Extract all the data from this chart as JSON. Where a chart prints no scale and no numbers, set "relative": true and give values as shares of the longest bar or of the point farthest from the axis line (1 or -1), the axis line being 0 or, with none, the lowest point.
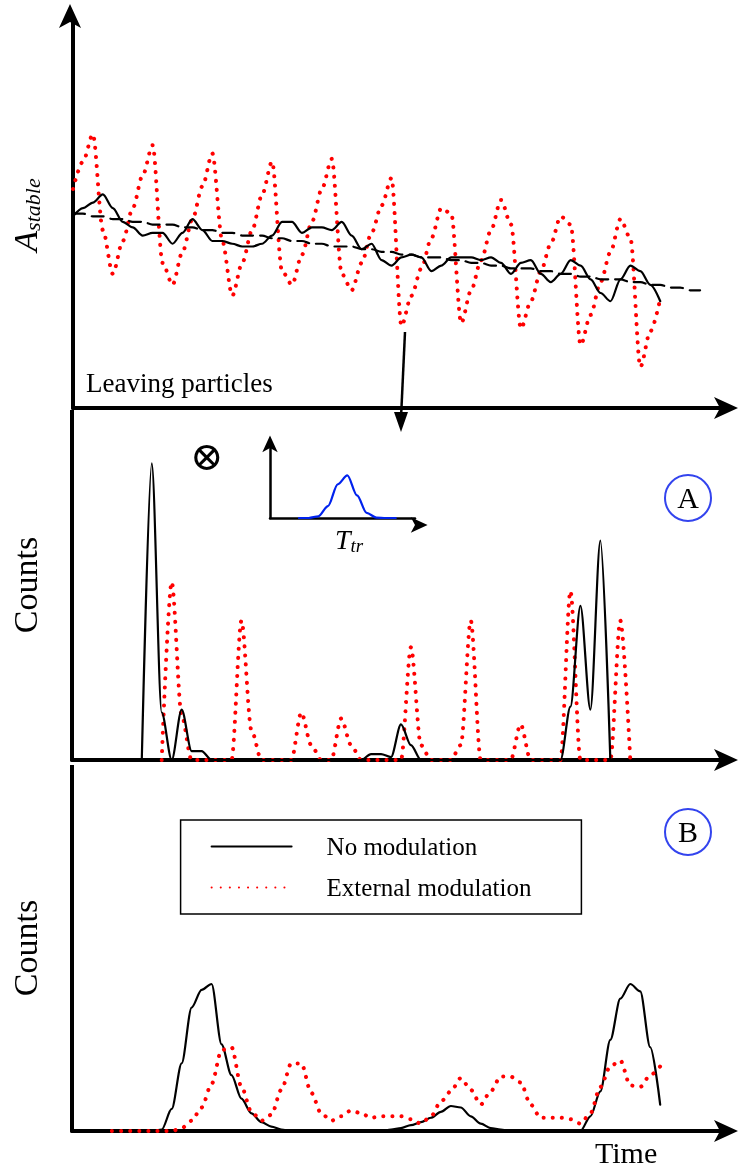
{
  "chart_data": [
    {
      "type": "line",
      "relative": true,
      "ylabel": "A$_{stable}$",
      "annotations": [
        "Leaving particles"
      ],
      "categories": [
        null,
        null,
        null,
        null,
        null,
        null,
        null,
        null,
        null,
        null,
        null,
        null,
        null,
        null,
        null,
        null,
        null,
        null,
        null,
        null,
        null,
        null,
        null,
        null,
        null,
        null,
        null,
        null,
        null,
        null,
        null,
        null,
        null,
        null,
        null,
        null,
        null,
        null,
        null,
        null,
        null,
        null,
        null,
        null,
        null,
        null,
        null,
        null,
        null,
        null,
        null,
        null,
        null,
        null,
        null,
        null,
        null,
        null,
        null,
        null,
        null,
        null,
        null,
        null,
        null,
        null
      ],
      "series": [
        {
          "color": "#ff0000",
          "line_style": "dotted",
          "values": [
            0.8,
            0.9,
            1.0,
            0.65,
            0.49,
            0.61,
            0.73,
            0.85,
            0.96,
            0.53,
            0.45,
            0.57,
            0.69,
            0.81,
            0.93,
            0.61,
            0.41,
            0.53,
            0.65,
            0.78,
            0.9,
            0.5,
            0.45,
            0.56,
            0.68,
            0.8,
            0.91,
            0.49,
            0.43,
            0.53,
            0.64,
            0.74,
            0.84,
            0.3,
            0.41,
            0.51,
            0.62,
            0.73,
            0.71,
            0.31,
            0.43,
            0.54,
            0.65,
            0.76,
            0.67,
            0.29,
            0.39,
            0.5,
            0.6,
            0.7,
            0.67,
            0.23,
            0.34,
            0.46,
            0.57,
            0.69,
            0.62,
            0.15,
            0.28,
            0.4,
            null,
            null,
            null,
            null,
            null,
            null
          ]
        },
        {
          "color": "#000000",
          "line_style": "solid",
          "values": [
            0.7,
            0.73,
            0.75,
            0.78,
            0.73,
            0.68,
            0.66,
            0.63,
            0.64,
            0.64,
            0.6,
            0.64,
            0.69,
            0.65,
            0.61,
            0.61,
            0.6,
            0.59,
            0.59,
            0.6,
            0.63,
            0.68,
            0.68,
            0.64,
            0.66,
            0.66,
            0.65,
            0.68,
            0.63,
            0.58,
            0.6,
            0.54,
            0.52,
            0.55,
            0.56,
            0.55,
            0.5,
            0.52,
            0.55,
            0.55,
            0.55,
            0.54,
            0.55,
            0.53,
            0.49,
            0.53,
            0.54,
            0.49,
            0.46,
            0.49,
            0.54,
            0.52,
            0.47,
            0.42,
            0.39,
            0.47,
            0.52,
            0.5,
            0.45,
            0.39,
            null,
            null,
            null,
            null,
            null,
            null
          ]
        },
        {
          "color": "#000000",
          "line_style": "dashed",
          "values": [
            0.71,
            0.71,
            0.7,
            0.7,
            0.69,
            0.69,
            0.68,
            0.68,
            0.67,
            0.67,
            0.67,
            0.66,
            0.66,
            0.65,
            0.65,
            0.64,
            0.64,
            0.63,
            0.63,
            0.63,
            0.62,
            0.62,
            0.61,
            0.61,
            0.6,
            0.6,
            0.59,
            0.59,
            0.59,
            0.58,
            0.58,
            0.57,
            0.57,
            0.56,
            0.56,
            0.55,
            0.55,
            0.55,
            0.54,
            0.54,
            0.53,
            0.53,
            0.52,
            0.52,
            0.51,
            0.51,
            0.51,
            0.5,
            0.5,
            0.49,
            0.49,
            0.48,
            0.48,
            0.47,
            0.47,
            0.47,
            0.46,
            0.46,
            0.45,
            0.45,
            0.44,
            0.44,
            0.43,
            0.43,
            null,
            null
          ]
        }
      ]
    },
    {
      "type": "line",
      "relative": true,
      "ylabel": "Counts",
      "annotations": [
        "⊗",
        "A"
      ],
      "categories": [
        null,
        null,
        null,
        null,
        null,
        null,
        null,
        null,
        null,
        null,
        null,
        null,
        null,
        null,
        null,
        null,
        null,
        null,
        null,
        null,
        null,
        null,
        null,
        null,
        null,
        null,
        null,
        null,
        null,
        null,
        null,
        null,
        null,
        null,
        null,
        null,
        null,
        null,
        null,
        null,
        null,
        null,
        null,
        null,
        null,
        null,
        null,
        null,
        null,
        null,
        null,
        null,
        null,
        null,
        null,
        null,
        null,
        null,
        null,
        null,
        null,
        null,
        null,
        null,
        null,
        null
      ],
      "series": [
        {
          "color": "#ff0000",
          "line_style": "dotted",
          "values": [
            null,
            null,
            null,
            null,
            null,
            null,
            null,
            null,
            null,
            0,
            0.6,
            0.15,
            0,
            0,
            0,
            0,
            0,
            0.47,
            0.1,
            0,
            0,
            0,
            0,
            0.16,
            0.05,
            0,
            0,
            0.14,
            0.05,
            0,
            0,
            0,
            0,
            0,
            0.38,
            0.05,
            0,
            0,
            0,
            0.05,
            0.47,
            0,
            0,
            0,
            0,
            0.12,
            0,
            0,
            0,
            0,
            0.57,
            0,
            0,
            0,
            0,
            0.47,
            0,
            null,
            null,
            null,
            null,
            null,
            null,
            null,
            null,
            null
          ]
        },
        {
          "color": "#000000",
          "line_style": "solid",
          "values": [
            null,
            null,
            null,
            null,
            null,
            null,
            null,
            0,
            1.0,
            0.16,
            0,
            0.17,
            0.03,
            0.03,
            0,
            0,
            0,
            0,
            0,
            0,
            0,
            0,
            0,
            0,
            0,
            0,
            0,
            0,
            0,
            0,
            0.02,
            0.02,
            0.01,
            0.12,
            0.05,
            0,
            0,
            0,
            0,
            0,
            0,
            0,
            0,
            0,
            0,
            0,
            0,
            0,
            0,
            0,
            0.18,
            0.52,
            0.17,
            0.74,
            0,
            null,
            null,
            null,
            null,
            null,
            null,
            null,
            null,
            null,
            null,
            null
          ]
        }
      ]
    },
    {
      "type": "line",
      "relative": true,
      "ylabel": "Counts",
      "xlabel": "Time",
      "legend": "top",
      "annotations": [
        "B"
      ],
      "categories": [
        null,
        null,
        null,
        null,
        null,
        null,
        null,
        null,
        null,
        null,
        null,
        null,
        null,
        null,
        null,
        null,
        null,
        null,
        null,
        null,
        null,
        null,
        null,
        null,
        null,
        null,
        null,
        null,
        null,
        null,
        null,
        null,
        null,
        null,
        null,
        null,
        null,
        null,
        null,
        null,
        null,
        null,
        null,
        null,
        null,
        null,
        null,
        null,
        null,
        null,
        null,
        null,
        null,
        null,
        null,
        null,
        null,
        null,
        null,
        null,
        null,
        null,
        null,
        null,
        null,
        null
      ],
      "series": [
        {
          "name": "No modulation",
          "color": "#000000",
          "line_style": "solid",
          "values": [
            null,
            null,
            null,
            null,
            0,
            0,
            0,
            0,
            0,
            0.01,
            0.15,
            0.46,
            0.84,
            0.96,
            1.0,
            0.59,
            0.38,
            0.22,
            0.12,
            0.06,
            0.03,
            0.01,
            0,
            0,
            0,
            0,
            0,
            0,
            0,
            0,
            0,
            0,
            0.01,
            0.02,
            0.04,
            0.06,
            0.09,
            0.13,
            0.17,
            0.16,
            0.1,
            0.05,
            0.02,
            0.01,
            0,
            0,
            0,
            0,
            0,
            0,
            0,
            0,
            0.1,
            0.27,
            0.62,
            0.9,
            1.0,
            0.95,
            0.57,
            0.18,
            null,
            null,
            null,
            null,
            null,
            null
          ]
        },
        {
          "name": "External modulation",
          "color": "#ff0000",
          "line_style": "dotted",
          "values": [
            null,
            null,
            null,
            null,
            0,
            0,
            0,
            0,
            0,
            0,
            0,
            0.02,
            0.07,
            0.16,
            0.32,
            0.55,
            0.57,
            0.3,
            0.13,
            0.07,
            0.11,
            0.28,
            0.46,
            0.46,
            0.26,
            0.12,
            0.07,
            0.1,
            0.14,
            0.12,
            0.09,
            0.1,
            0.1,
            0.1,
            0.08,
            0.05,
            0.1,
            0.2,
            0.27,
            0.36,
            0.28,
            0.18,
            0.27,
            0.37,
            0.37,
            0.33,
            0.18,
            0.09,
            0.09,
            0.09,
            0.08,
            0.05,
            0.12,
            0.3,
            0.44,
            0.48,
            0.31,
            0.3,
            0.38,
            0.44,
            null,
            null,
            null,
            null,
            null,
            null
          ]
        }
      ]
    },
    {
      "type": "line",
      "relative": true,
      "xlabel": "T$_{tr}$",
      "categories": [
        null,
        null,
        null,
        null,
        null,
        null,
        null,
        null,
        null,
        null,
        null,
        null,
        null,
        null,
        null,
        null
      ],
      "series": [
        {
          "color": "#0022ee",
          "line_style": "solid",
          "values": [
            null,
            null,
            null,
            0,
            0,
            0.04,
            0.28,
            0.79,
            1.0,
            0.53,
            0.12,
            0.01,
            0,
            0,
            null,
            null
          ]
        }
      ]
    }
  ]
}
